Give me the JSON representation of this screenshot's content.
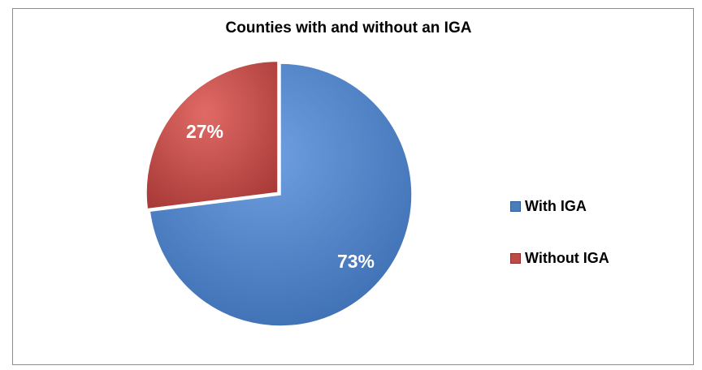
{
  "chart_data": {
    "type": "pie",
    "title": "Counties with and without an IGA",
    "categories": [
      "With IGA",
      "Without IGA"
    ],
    "values": [
      73,
      27
    ],
    "data_labels": [
      "73%",
      "27%"
    ],
    "colors": [
      "#4a7ebb",
      "#be4b48"
    ],
    "legend_placement": "right"
  }
}
